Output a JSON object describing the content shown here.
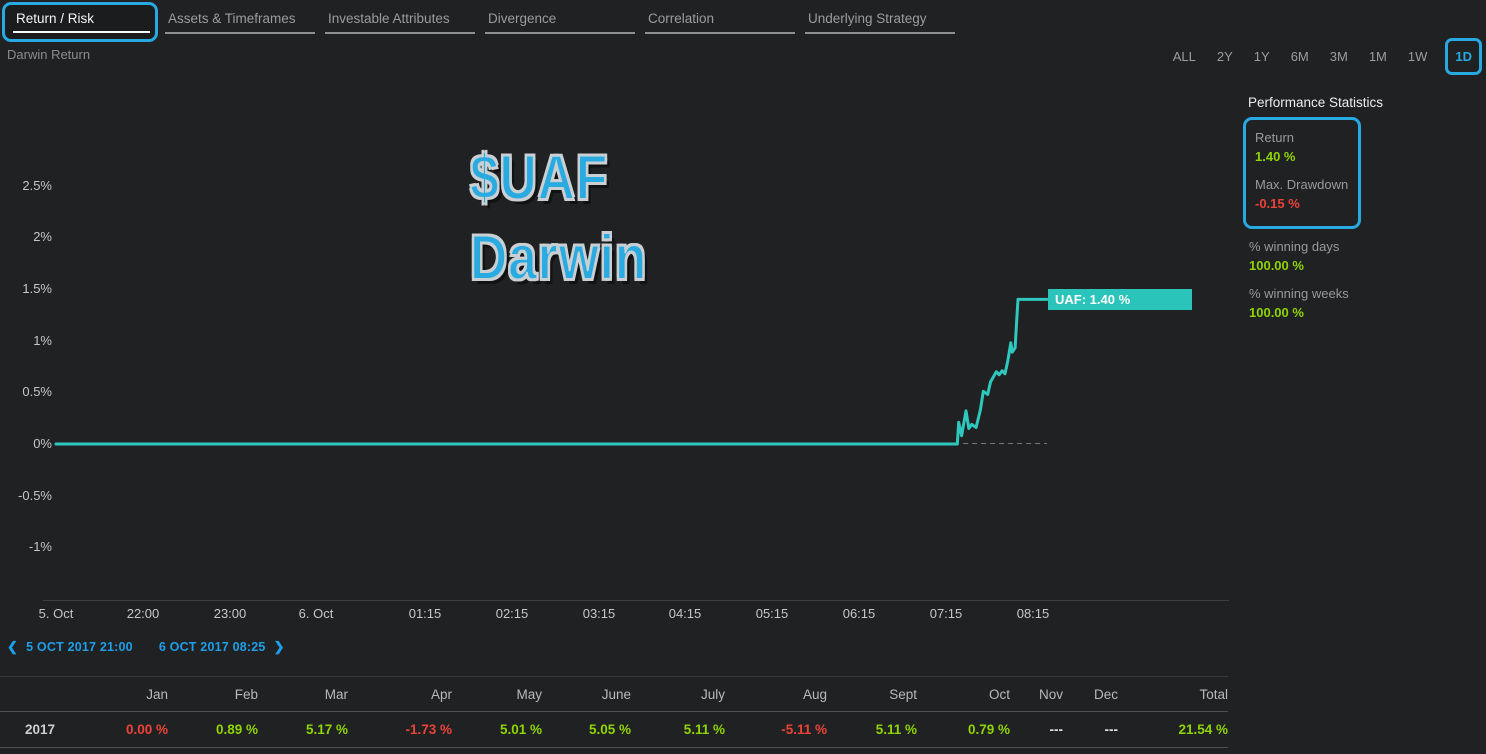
{
  "palette": {
    "accent_blue": "#29A9E2",
    "line_teal": "#2EC8BE",
    "label_teal_bg": "#2BC4BA",
    "positive_green": "#8FD400",
    "negative_red": "#ED4337",
    "background": "#202123"
  },
  "tabs": {
    "items": [
      {
        "label": "Return / Risk",
        "active": true
      },
      {
        "label": "Assets & Timeframes",
        "active": false
      },
      {
        "label": "Investable Attributes",
        "active": false
      },
      {
        "label": "Divergence",
        "active": false
      },
      {
        "label": "Correlation",
        "active": false
      },
      {
        "label": "Underlying Strategy",
        "active": false
      }
    ]
  },
  "chart_header": {
    "title": "Darwin Return"
  },
  "timeframes": {
    "options": [
      "ALL",
      "2Y",
      "1Y",
      "6M",
      "3M",
      "1M",
      "1W",
      "1D"
    ],
    "selected": "1D"
  },
  "watermark": {
    "line1": "$UAF",
    "line2": "Darwin"
  },
  "chart_data": {
    "type": "line",
    "title": "Darwin Return",
    "series_name": "UAF",
    "unit": "%",
    "final_value_pct": 1.4,
    "last_value_label": "UAF: 1.40 %",
    "x_start_label": "5 OCT 2017 21:00",
    "x_end_label": "6 OCT 2017 08:25",
    "minutes_total": 685,
    "y_ticks": [
      {
        "label": "2.5%",
        "value": 2.5
      },
      {
        "label": "2%",
        "value": 2
      },
      {
        "label": "1.5%",
        "value": 1.5
      },
      {
        "label": "1%",
        "value": 1
      },
      {
        "label": "0.5%",
        "value": 0.5
      },
      {
        "label": "0%",
        "value": 0
      },
      {
        "label": "-0.5%",
        "value": -0.5
      },
      {
        "label": "-1%",
        "value": -1
      }
    ],
    "x_ticks": [
      {
        "label": "5. Oct",
        "min": 0
      },
      {
        "label": "22:00",
        "min": 60
      },
      {
        "label": "23:00",
        "min": 120
      },
      {
        "label": "6. Oct",
        "min": 180
      },
      {
        "label": "01:15",
        "min": 255
      },
      {
        "label": "02:15",
        "min": 315
      },
      {
        "label": "03:15",
        "min": 375
      },
      {
        "label": "04:15",
        "min": 435
      },
      {
        "label": "05:15",
        "min": 495
      },
      {
        "label": "06:15",
        "min": 555
      },
      {
        "label": "07:15",
        "min": 615
      },
      {
        "label": "08:15",
        "min": 675
      }
    ],
    "series": [
      {
        "name": "UAF",
        "points_min_pct": [
          [
            0,
            0
          ],
          [
            623,
            0
          ],
          [
            624,
            0.21
          ],
          [
            626,
            0.08
          ],
          [
            629,
            0.32
          ],
          [
            631,
            0.15
          ],
          [
            633,
            0.19
          ],
          [
            636,
            0.16
          ],
          [
            639,
            0.33
          ],
          [
            641,
            0.51
          ],
          [
            644,
            0.48
          ],
          [
            646,
            0.6
          ],
          [
            648,
            0.65
          ],
          [
            650,
            0.7
          ],
          [
            652,
            0.67
          ],
          [
            654,
            0.71
          ],
          [
            656,
            0.68
          ],
          [
            658,
            0.81
          ],
          [
            660,
            0.98
          ],
          [
            661,
            0.89
          ],
          [
            663,
            0.93
          ],
          [
            664,
            1.18
          ],
          [
            665,
            1.4
          ],
          [
            685,
            1.4
          ]
        ]
      }
    ],
    "zero_dash_min": [
      627,
      685
    ],
    "legend_position": "none",
    "grid": false
  },
  "performance_stats": {
    "title": "Performance Statistics",
    "items": [
      {
        "label": "Return",
        "value": "1.40 %",
        "highlighted": true
      },
      {
        "label": "Max. Drawdown",
        "value": "-0.15 %",
        "highlighted": true
      },
      {
        "label": "% winning days",
        "value": "100.00 %",
        "highlighted": false
      },
      {
        "label": "% winning weeks",
        "value": "100.00 %",
        "highlighted": false
      }
    ]
  },
  "date_nav": {
    "prev_icon": "❮",
    "prev_label": "5 OCT 2017 21:00",
    "next_label": "6 OCT 2017 08:25",
    "next_icon": "❯"
  },
  "monthly_table": {
    "row_label": "2017",
    "headers": [
      "Jan",
      "Feb",
      "Mar",
      "Apr",
      "May",
      "June",
      "July",
      "Aug",
      "Sept",
      "Oct",
      "Nov",
      "Dec",
      "Total"
    ],
    "values": [
      "0.00 %",
      "0.89 %",
      "5.17 %",
      "-1.73 %",
      "5.01 %",
      "5.05 %",
      "5.11 %",
      "-5.11 %",
      "5.11 %",
      "0.79 %",
      "---",
      "---",
      "21.54 %"
    ]
  }
}
